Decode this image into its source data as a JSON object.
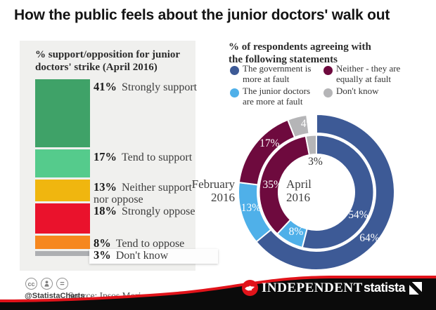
{
  "header": {
    "title": "How the public feels about the junior doctors' walk out"
  },
  "chart_data": [
    {
      "type": "bar",
      "subtype": "stacked-single-column",
      "title": "% support/opposition for junior\ndoctors' strike (April 2016)",
      "categories": [
        "Strongly support",
        "Tend to support",
        "Neither support\nnor oppose",
        "Strongly oppose",
        "Tend to oppose",
        "Don't know"
      ],
      "values": [
        41,
        17,
        13,
        18,
        8,
        3
      ],
      "unit": "%",
      "colors": [
        "#3FA268",
        "#55CB8C",
        "#F0B60F",
        "#EA122C",
        "#F6871F",
        "#ADAFB2"
      ]
    },
    {
      "type": "donut",
      "title": "% of respondents agreeing with\nthe following statements",
      "legend_position": "top",
      "legend": [
        {
          "label": "The government is\nmore at fault",
          "color": "#3D5A96"
        },
        {
          "label": "The junior doctors\nare more at fault",
          "color": "#4FB0E9"
        },
        {
          "label": "Neither - they are\nequally at fault",
          "color": "#6E0A3E"
        },
        {
          "label": "Don't know",
          "color": "#B5B5B7"
        }
      ],
      "rings": [
        {
          "name": "February 2016",
          "position": "outer",
          "values": [
            64,
            13,
            17,
            4
          ]
        },
        {
          "name": "April 2016",
          "position": "inner",
          "values": [
            54,
            8,
            35,
            3
          ]
        }
      ],
      "unit": "%"
    }
  ],
  "footer": {
    "handle": "@StatistaCharts",
    "source": "Source: Ipsos Mori",
    "partner_logo": "INDEPENDENT",
    "brand_logo": "statista",
    "accent_red": "#E1131A",
    "banner_black": "#0b0b0b"
  }
}
